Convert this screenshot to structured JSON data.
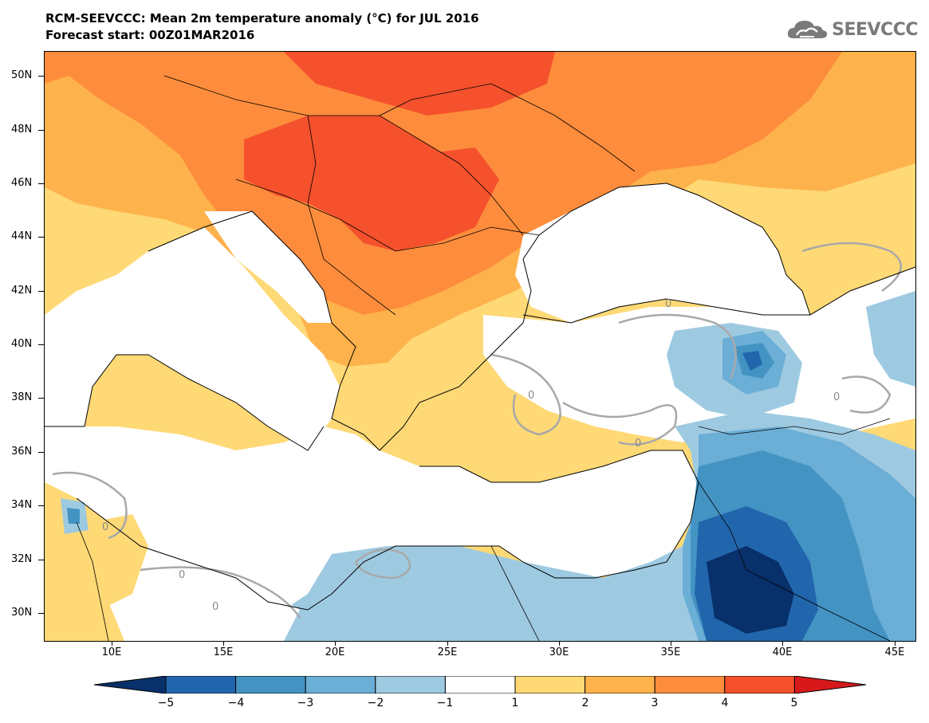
{
  "header": {
    "title": "RCM-SEEVCCC: Mean 2m temperature anomaly (°C) for JUL 2016",
    "subtitle": "Forecast start: 00Z01MAR2016"
  },
  "logo": {
    "text": "SEEVCCC",
    "icon": "cloud-icon"
  },
  "map": {
    "variable": "Mean 2m temperature anomaly",
    "unit": "°C",
    "lon_range": [
      7,
      46
    ],
    "lat_range": [
      29,
      51
    ],
    "lat_labels": [
      "50N",
      "48N",
      "46N",
      "44N",
      "42N",
      "40N",
      "38N",
      "36N",
      "34N",
      "32N",
      "30N"
    ],
    "lon_labels": [
      "10E",
      "15E",
      "20E",
      "25E",
      "30E",
      "35E",
      "40E",
      "45E"
    ],
    "contour_labels": [
      "0",
      "0",
      "0",
      "0",
      "0",
      "0",
      "0"
    ],
    "regions": [
      {
        "name": "Hungary / Pannonian basin",
        "anomaly_class": "4 to 5"
      },
      {
        "name": "Ukraine / Moldova",
        "anomaly_class": "3 to 4"
      },
      {
        "name": "Balkans",
        "anomaly_class": "3 to 4"
      },
      {
        "name": "Italy",
        "anomaly_class": "1 to 2"
      },
      {
        "name": "Black Sea",
        "anomaly_class": "-1 to 1"
      },
      {
        "name": "Anatolia",
        "anomaly_class": "-3 to 0"
      },
      {
        "name": "Syria / Jordan",
        "anomaly_class": "-5 to -3"
      },
      {
        "name": "Egypt / Libya coast",
        "anomaly_class": "-2 to -1"
      }
    ]
  },
  "colorbar": {
    "ticks": [
      "−5",
      "−4",
      "−3",
      "−2",
      "−1",
      "1",
      "2",
      "3",
      "4",
      "5"
    ],
    "colors": [
      "#08306b",
      "#2166ac",
      "#4393c3",
      "#6baed6",
      "#9ecae1",
      "#ffffff",
      "#fed976",
      "#feb24c",
      "#fd8d3c",
      "#f4512c",
      "#d7191c"
    ]
  }
}
